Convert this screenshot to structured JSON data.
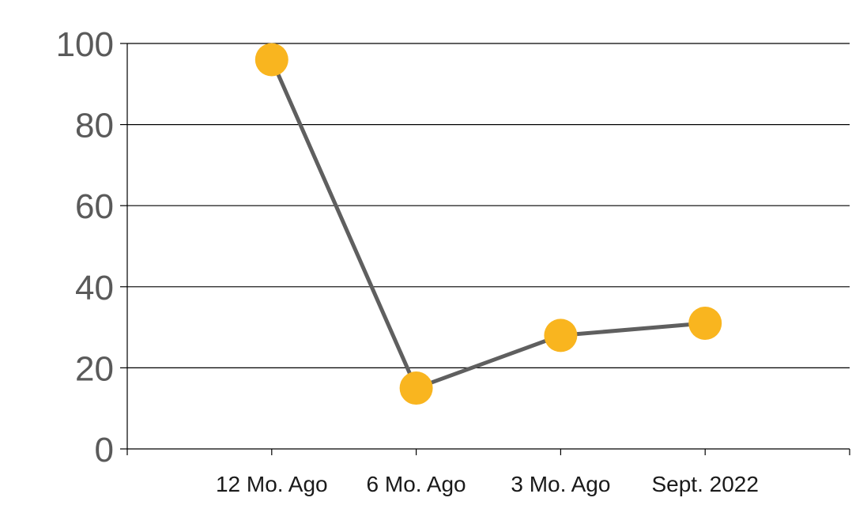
{
  "chart_data": {
    "type": "line",
    "title": "",
    "xlabel": "",
    "ylabel": "",
    "categories": [
      "12 Mo. Ago",
      "6 Mo. Ago",
      "3 Mo. Ago",
      "Sept. 2022"
    ],
    "series": [
      {
        "values": [
          96,
          15,
          28,
          31
        ]
      }
    ],
    "ylim": [
      0,
      100
    ],
    "y_ticks": [
      0,
      20,
      40,
      60,
      80,
      100
    ],
    "grid": "horizontal",
    "legend": "none",
    "colors": {
      "line": "#5f5f5f",
      "marker": "#f9b51f",
      "grid": "#000000",
      "axis": "#000000",
      "tick_label_y": "#5a5a5a",
      "tick_label_x": "#1a1a1a"
    }
  }
}
